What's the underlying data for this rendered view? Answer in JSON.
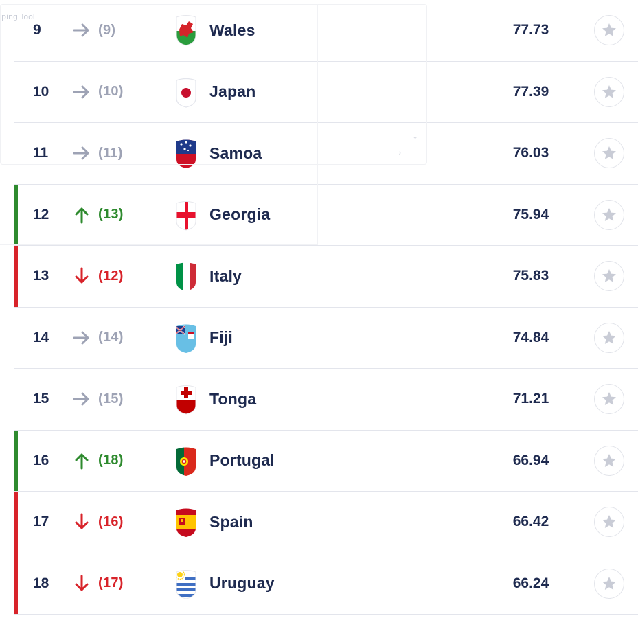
{
  "overlay": {
    "label": "ping Tool"
  },
  "colors": {
    "text": "#1e2a4f",
    "same": "#9ea3b5",
    "up": "#2e8a2e",
    "down": "#d8232a",
    "star": "#c9ccd6",
    "divider": "#e3e5ec"
  },
  "rankings": [
    {
      "rank": "9",
      "movement": "same",
      "previous": "(9)",
      "team": "Wales",
      "points": "77.73",
      "flag_icon": "wales-flag-icon"
    },
    {
      "rank": "10",
      "movement": "same",
      "previous": "(10)",
      "team": "Japan",
      "points": "77.39",
      "flag_icon": "japan-flag-icon"
    },
    {
      "rank": "11",
      "movement": "same",
      "previous": "(11)",
      "team": "Samoa",
      "points": "76.03",
      "flag_icon": "samoa-flag-icon"
    },
    {
      "rank": "12",
      "movement": "up",
      "previous": "(13)",
      "team": "Georgia",
      "points": "75.94",
      "flag_icon": "georgia-flag-icon"
    },
    {
      "rank": "13",
      "movement": "down",
      "previous": "(12)",
      "team": "Italy",
      "points": "75.83",
      "flag_icon": "italy-flag-icon"
    },
    {
      "rank": "14",
      "movement": "same",
      "previous": "(14)",
      "team": "Fiji",
      "points": "74.84",
      "flag_icon": "fiji-flag-icon"
    },
    {
      "rank": "15",
      "movement": "same",
      "previous": "(15)",
      "team": "Tonga",
      "points": "71.21",
      "flag_icon": "tonga-flag-icon"
    },
    {
      "rank": "16",
      "movement": "up",
      "previous": "(18)",
      "team": "Portugal",
      "points": "66.94",
      "flag_icon": "portugal-flag-icon"
    },
    {
      "rank": "17",
      "movement": "down",
      "previous": "(16)",
      "team": "Spain",
      "points": "66.42",
      "flag_icon": "spain-flag-icon"
    },
    {
      "rank": "18",
      "movement": "down",
      "previous": "(17)",
      "team": "Uruguay",
      "points": "66.24",
      "flag_icon": "uruguay-flag-icon"
    }
  ]
}
